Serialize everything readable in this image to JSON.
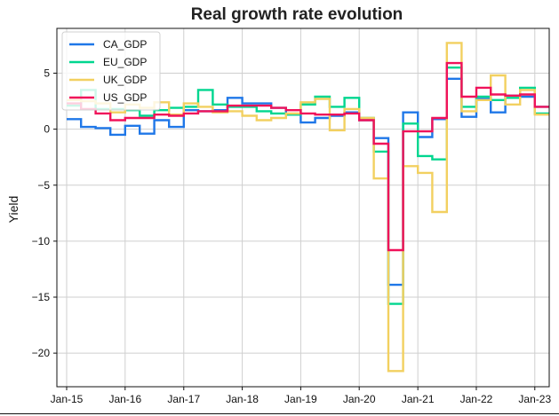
{
  "chart_data": {
    "type": "line",
    "step": "post",
    "title": "Real growth rate evolution",
    "xlabel": "",
    "ylabel": "Yield",
    "xlim": [
      "2014-11-01",
      "2023-04-01"
    ],
    "ylim": [
      -23,
      9
    ],
    "yticks": [
      5,
      0,
      -5,
      -10,
      -15,
      -20
    ],
    "xticks": [
      {
        "date": "2015-01-01",
        "label": "Jan-15"
      },
      {
        "date": "2016-01-01",
        "label": "Jan-16"
      },
      {
        "date": "2017-01-01",
        "label": "Jan-17"
      },
      {
        "date": "2018-01-01",
        "label": "Jan-18"
      },
      {
        "date": "2019-01-01",
        "label": "Jan-19"
      },
      {
        "date": "2020-01-01",
        "label": "Jan-20"
      },
      {
        "date": "2021-01-01",
        "label": "Jan-21"
      },
      {
        "date": "2022-01-01",
        "label": "Jan-22"
      },
      {
        "date": "2023-01-01",
        "label": "Jan-23"
      }
    ],
    "x": [
      "2015-01-01",
      "2015-04-01",
      "2015-07-01",
      "2015-10-01",
      "2016-01-01",
      "2016-04-01",
      "2016-07-01",
      "2016-10-01",
      "2017-01-01",
      "2017-04-01",
      "2017-07-01",
      "2017-10-01",
      "2018-01-01",
      "2018-04-01",
      "2018-07-01",
      "2018-10-01",
      "2019-01-01",
      "2019-04-01",
      "2019-07-01",
      "2019-10-01",
      "2020-01-01",
      "2020-04-01",
      "2020-07-01",
      "2020-10-01",
      "2021-01-01",
      "2021-04-01",
      "2021-07-01",
      "2021-10-01",
      "2022-01-01",
      "2022-04-01",
      "2022-07-01",
      "2022-10-01",
      "2023-01-01"
    ],
    "series": [
      {
        "name": "CA_GDP",
        "color": "#1f77e8",
        "values": [
          0.9,
          0.2,
          0.1,
          -0.5,
          0.3,
          -0.4,
          0.8,
          0.2,
          1.7,
          1.6,
          1.7,
          2.8,
          2.3,
          2.3,
          1.9,
          1.3,
          0.6,
          1.0,
          1.2,
          1.5,
          0.8,
          -0.8,
          -13.9,
          1.5,
          -0.7,
          0.9,
          4.5,
          1.1,
          2.7,
          1.5,
          3.0,
          2.9,
          2.0
        ]
      },
      {
        "name": "EU_GDP",
        "color": "#00d68f",
        "values": [
          2.1,
          3.5,
          1.8,
          1.8,
          1.7,
          1.2,
          1.7,
          1.9,
          2.0,
          3.5,
          2.2,
          2.0,
          2.0,
          1.6,
          1.4,
          1.3,
          2.2,
          2.9,
          2.0,
          2.8,
          1.0,
          -2.0,
          -15.6,
          0.5,
          -2.4,
          -2.7,
          5.5,
          2.0,
          2.9,
          2.6,
          2.8,
          3.7,
          1.4
        ]
      },
      {
        "name": "UK_GDP",
        "color": "#f2d060",
        "values": [
          2.6,
          2.5,
          2.3,
          1.5,
          2.2,
          1.9,
          2.4,
          1.3,
          2.3,
          2.0,
          1.5,
          1.6,
          1.2,
          0.8,
          1.0,
          1.4,
          2.4,
          2.7,
          -0.1,
          1.8,
          1.0,
          -4.4,
          -21.6,
          -3.3,
          -3.9,
          -7.4,
          7.7,
          1.6,
          2.6,
          4.8,
          2.2,
          3.5,
          1.3
        ]
      },
      {
        "name": "US_GDP",
        "color": "#f0125a",
        "values": [
          2.3,
          1.8,
          1.4,
          0.8,
          1.0,
          1.0,
          1.3,
          1.2,
          1.4,
          1.6,
          1.6,
          2.1,
          2.1,
          2.1,
          1.9,
          1.7,
          1.4,
          1.3,
          1.3,
          1.4,
          0.8,
          -1.3,
          -10.8,
          -0.2,
          -0.2,
          1.0,
          5.9,
          2.9,
          3.7,
          3.1,
          3.0,
          3.1,
          2.0
        ]
      }
    ],
    "legend_position": "top-left",
    "grid": true
  }
}
